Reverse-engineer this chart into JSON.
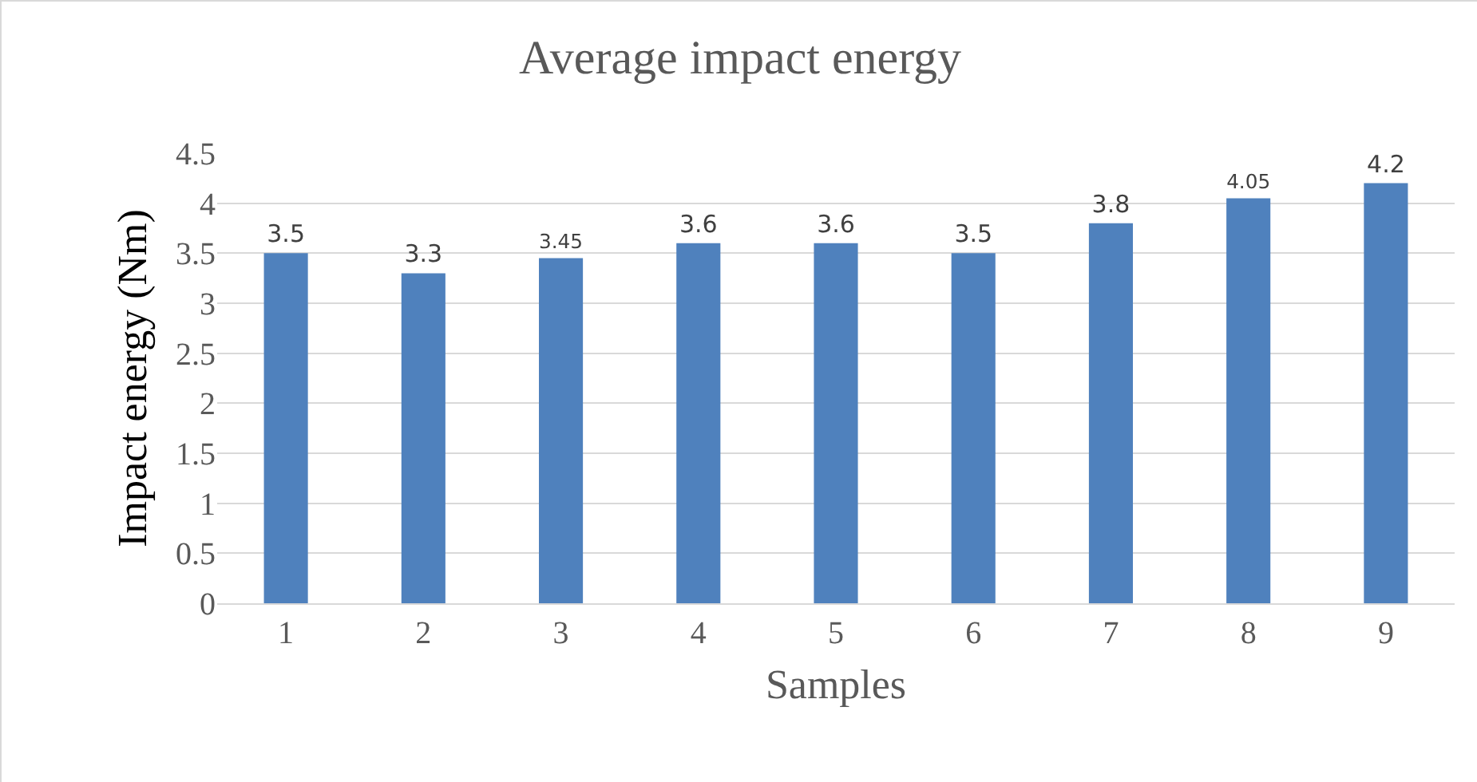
{
  "chart_data": {
    "type": "bar",
    "title": "Average impact energy",
    "xlabel": "Samples",
    "ylabel": "Impact energy (Nm)",
    "categories": [
      "1",
      "2",
      "3",
      "4",
      "5",
      "6",
      "7",
      "8",
      "9"
    ],
    "values": [
      3.5,
      3.3,
      3.45,
      3.6,
      3.6,
      3.5,
      3.8,
      4.05,
      4.2
    ],
    "color": "#4f81bd",
    "ylim": [
      0,
      4.5
    ],
    "yticks": [
      0,
      0.5,
      1,
      1.5,
      2,
      2.5,
      3,
      3.5,
      4,
      4.5
    ],
    "grid": "y",
    "data_labels": true
  }
}
